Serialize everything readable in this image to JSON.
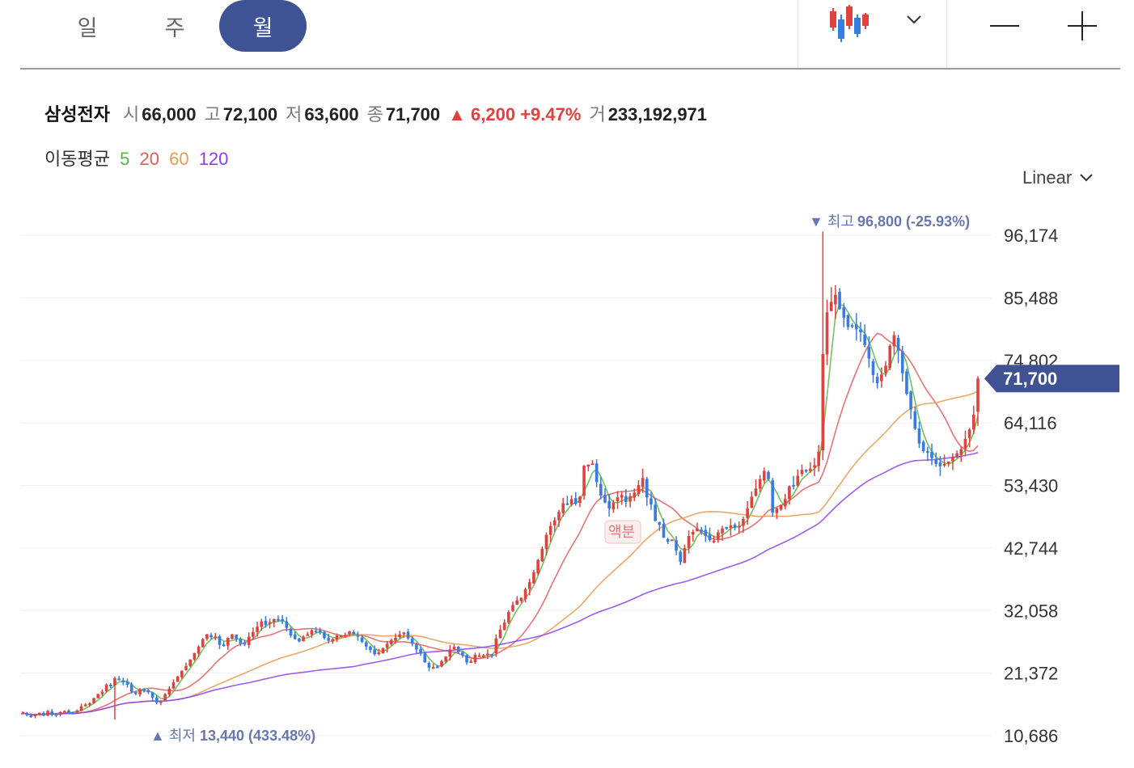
{
  "period_tabs": [
    {
      "label": "일",
      "active": false
    },
    {
      "label": "주",
      "active": false
    },
    {
      "label": "월",
      "active": true
    }
  ],
  "toolbar": {
    "chart_type_icon": "candlestick-icon",
    "dropdown_icon": "chevron-down-icon",
    "zoom_out_icon": "minus-icon",
    "zoom_in_icon": "plus-icon"
  },
  "stock": {
    "name": "삼성전자",
    "open_label": "시",
    "open": "66,000",
    "high_label": "고",
    "high": "72,100",
    "low_label": "저",
    "low": "63,600",
    "close_label": "종",
    "close": "71,700",
    "change": "▲ 6,200 +9.47%",
    "volume_label": "거",
    "volume": "233,192,971"
  },
  "moving_average": {
    "label": "이동평균",
    "periods": [
      {
        "value": "5",
        "color": "#58b847"
      },
      {
        "value": "20",
        "color": "#e45b5b"
      },
      {
        "value": "60",
        "color": "#e89a4f"
      },
      {
        "value": "120",
        "color": "#8d3ff0"
      }
    ]
  },
  "scale": {
    "label": "Linear",
    "icon": "chevron-down-icon"
  },
  "colors": {
    "up": "#e0433e",
    "down": "#3a7be0",
    "accent": "#3f5394",
    "annotation": "#6878ad"
  },
  "chart_data": {
    "type": "candlestick",
    "y_ticks": [
      10686,
      21372,
      32058,
      42744,
      53430,
      64116,
      74802,
      85488,
      96174
    ],
    "y_tick_labels": [
      "10,686",
      "21,372",
      "32,058",
      "42,744",
      "53,430",
      "64,116",
      "74,802",
      "85,488",
      "96,174"
    ],
    "ylim": [
      10500,
      98000
    ],
    "grid": true,
    "current_price": 71700,
    "current_price_label": "71,700",
    "max_marker": {
      "label": "최고",
      "value_text": "96,800 (-25.93%)",
      "value": 96800
    },
    "min_marker": {
      "label": "최저",
      "value_text": "13,440 (433.48%)",
      "value": 13440
    },
    "event_tag": "액분",
    "close_series": [
      14.6,
      14.2,
      14.0,
      14.3,
      14.6,
      14.1,
      14.9,
      14.4,
      14.3,
      14.7,
      14.9,
      14.6,
      14.6,
      15.0,
      15.7,
      16.0,
      16.2,
      17.1,
      17.8,
      18.2,
      19.4,
      19.3,
      20.5,
      20.2,
      19.8,
      19.4,
      18.2,
      17.8,
      18.6,
      18.6,
      18.1,
      17.2,
      16.3,
      16.6,
      17.8,
      18.7,
      19.8,
      20.8,
      21.8,
      22.6,
      23.7,
      24.8,
      25.9,
      27.2,
      28.0,
      27.5,
      27.6,
      26.2,
      26.1,
      27.4,
      28.0,
      27.2,
      26.4,
      26.3,
      27.6,
      28.4,
      29.3,
      30.2,
      29.6,
      30.1,
      30.6,
      30.5,
      30.2,
      29.1,
      27.8,
      27.2,
      26.8,
      27.6,
      28.0,
      28.7,
      28.5,
      28.3,
      27.4,
      26.9,
      27.2,
      27.8,
      27.8,
      27.9,
      28.5,
      28.0,
      27.6,
      26.7,
      25.9,
      25.3,
      24.6,
      24.9,
      25.6,
      26.4,
      27.0,
      27.4,
      28.0,
      28.3,
      27.3,
      26.4,
      25.4,
      24.7,
      23.2,
      22.3,
      22.4,
      22.4,
      23.4,
      24.2,
      25.4,
      25.9,
      25.0,
      24.4,
      23.2,
      23.4,
      24.5,
      24.4,
      24.4,
      24.7,
      24.6,
      27.3,
      28.8,
      30.0,
      31.8,
      33.0,
      33.8,
      34.2,
      35.7,
      36.9,
      38.6,
      40.7,
      42.6,
      45.0,
      46.5,
      47.5,
      48.9,
      50.4,
      50.2,
      51.1,
      50.3,
      51.5,
      56.8,
      57.0,
      57.2,
      54.0,
      51.7,
      50.5,
      49.5,
      50.5,
      51.4,
      51.8,
      50.6,
      51.6,
      52.2,
      53.5,
      54.7,
      51.4,
      50.2,
      47.4,
      46.7,
      44.5,
      43.8,
      44.2,
      42.3,
      40.4,
      42.7,
      44.8,
      45.5,
      46.1,
      45.7,
      44.8,
      44.1,
      44.0,
      45.4,
      46.1,
      46.3,
      46.6,
      46.2,
      46.5,
      47.7,
      49.5,
      51.5,
      52.9,
      54.5,
      55.9,
      54.5,
      48.8,
      49.5,
      50.1,
      51.1,
      53.3,
      53.4,
      55.1,
      56.1,
      55.8,
      56.3,
      56.9,
      59.2,
      75.9,
      83.0,
      84.8,
      86.0,
      83.6,
      82.1,
      80.5,
      80.6,
      80.1,
      79.6,
      77.4,
      75.1,
      72.3,
      70.9,
      72.4,
      73.9,
      77.3,
      79.1,
      76.5,
      72.6,
      69.1,
      66.4,
      63.1,
      60.6,
      59.3,
      59.0,
      58.1,
      57.1,
      56.7,
      57.1,
      57.5,
      58.3,
      58.9,
      59.6,
      61.4,
      63.0,
      65.5,
      71.7
    ]
  }
}
